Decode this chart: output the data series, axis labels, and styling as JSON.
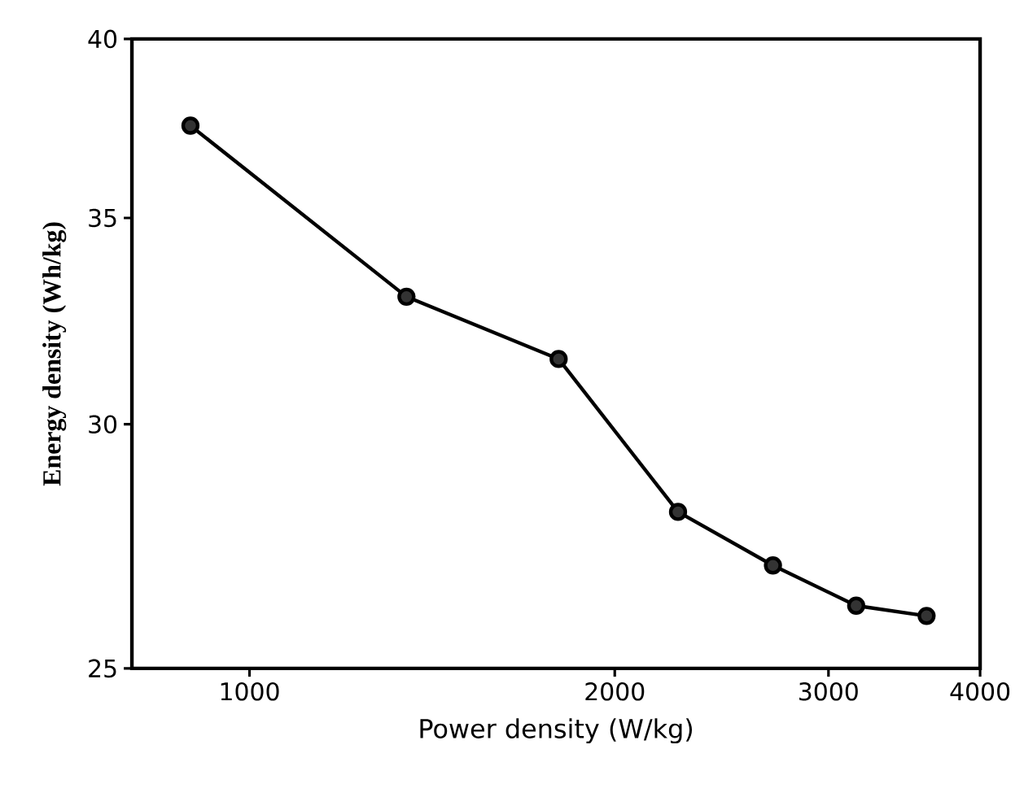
{
  "chart_data": {
    "type": "line",
    "xlabel": "Power density (W/kg)",
    "ylabel": "Energy density (Wh/kg)",
    "x": [
      894,
      1347,
      1798,
      2255,
      2700,
      3162,
      3614
    ],
    "values": [
      37.5,
      33.0,
      31.5,
      28.1,
      27.0,
      26.2,
      26.0
    ],
    "color": "#000000",
    "marker": "circle",
    "line_style": "solid",
    "log": "xy",
    "grid": false,
    "xlim": [
      800,
      4000
    ],
    "ylim": [
      25,
      40
    ],
    "xticks": [
      1000,
      2000,
      3000,
      4000
    ],
    "yticks": [
      25,
      30,
      35,
      40
    ]
  }
}
